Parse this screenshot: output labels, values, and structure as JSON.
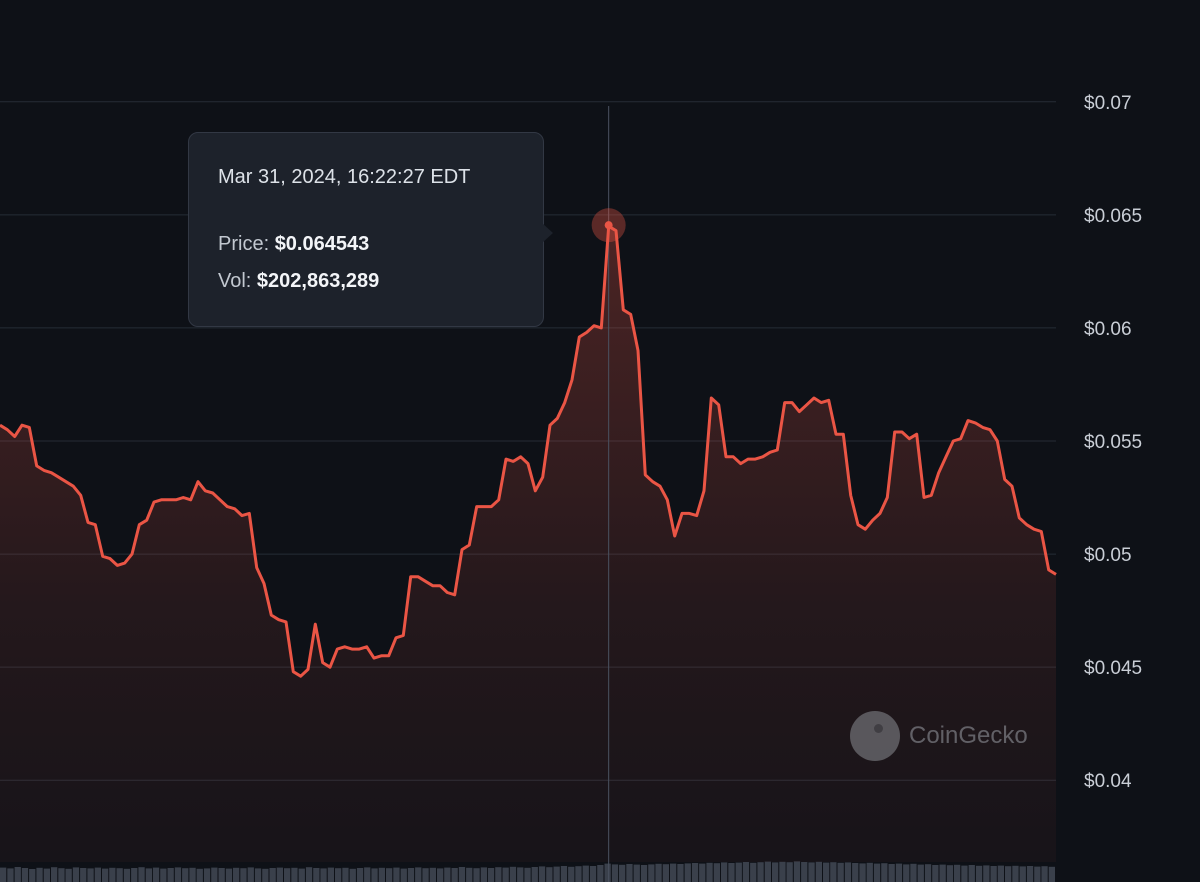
{
  "colors": {
    "background": "#0e1117",
    "line": "#ea5545",
    "gridline": "#262c36",
    "crosshair": "#4a5260",
    "volume": "#3a404b"
  },
  "tooltip": {
    "date": "Mar 31, 2024, 16:22:27 EDT",
    "price_label": "Price:",
    "price_value": "$0.064543",
    "vol_label": "Vol:",
    "vol_value": "$202,863,289"
  },
  "watermark": {
    "text": "CoinGecko",
    "icon": "gecko-logo-icon"
  },
  "chart_data": {
    "type": "area",
    "ylim": [
      0.0355,
      0.0745
    ],
    "y_ticks": [
      "$0.07",
      "$0.065",
      "$0.06",
      "$0.055",
      "$0.05",
      "$0.045",
      "$0.04"
    ],
    "y_tick_values": [
      0.07,
      0.065,
      0.06,
      0.055,
      0.05,
      0.045,
      0.04
    ],
    "grid": true,
    "hovered_index": 83,
    "hovered_value": 0.064543,
    "y": [
      0.0557,
      0.0555,
      0.0552,
      0.0557,
      0.0556,
      0.0539,
      0.0537,
      0.0536,
      0.0534,
      0.0532,
      0.053,
      0.0526,
      0.0514,
      0.0513,
      0.0499,
      0.0498,
      0.0495,
      0.0496,
      0.05,
      0.0513,
      0.0515,
      0.0523,
      0.0524,
      0.0524,
      0.0524,
      0.0525,
      0.0524,
      0.0532,
      0.0528,
      0.0527,
      0.0524,
      0.0521,
      0.052,
      0.0517,
      0.0518,
      0.0494,
      0.0487,
      0.0473,
      0.0471,
      0.047,
      0.0448,
      0.0446,
      0.0449,
      0.0469,
      0.0452,
      0.045,
      0.0458,
      0.0459,
      0.0458,
      0.0458,
      0.0459,
      0.0454,
      0.0455,
      0.0455,
      0.0463,
      0.0464,
      0.049,
      0.049,
      0.0488,
      0.0486,
      0.0486,
      0.0483,
      0.0482,
      0.0502,
      0.0504,
      0.0521,
      0.0521,
      0.0521,
      0.0524,
      0.0542,
      0.0541,
      0.0543,
      0.054,
      0.0528,
      0.0534,
      0.0557,
      0.056,
      0.0567,
      0.0577,
      0.0596,
      0.0598,
      0.0601,
      0.06,
      0.0645,
      0.0643,
      0.0608,
      0.0606,
      0.059,
      0.0535,
      0.0532,
      0.053,
      0.0524,
      0.0508,
      0.0518,
      0.0518,
      0.0517,
      0.0528,
      0.0569,
      0.0566,
      0.0543,
      0.0543,
      0.054,
      0.0542,
      0.0542,
      0.0543,
      0.0545,
      0.0546,
      0.0567,
      0.0567,
      0.0563,
      0.0566,
      0.0569,
      0.0567,
      0.0568,
      0.0553,
      0.0553,
      0.0526,
      0.0513,
      0.0511,
      0.0515,
      0.0518,
      0.0525,
      0.0554,
      0.0554,
      0.0551,
      0.0553,
      0.0525,
      0.0526,
      0.0536,
      0.0543,
      0.055,
      0.0551,
      0.0559,
      0.0558,
      0.0556,
      0.0555,
      0.055,
      0.0533,
      0.053,
      0.0516,
      0.0513,
      0.0511,
      0.051,
      0.0493,
      0.0491
    ],
    "volume": [
      0.42,
      0.38,
      0.45,
      0.4,
      0.35,
      0.41,
      0.37,
      0.44,
      0.39,
      0.36,
      0.43,
      0.4,
      0.38,
      0.42,
      0.37,
      0.41,
      0.39,
      0.36,
      0.4,
      0.44,
      0.38,
      0.42,
      0.37,
      0.4,
      0.43,
      0.39,
      0.41,
      0.36,
      0.38,
      0.42,
      0.4,
      0.37,
      0.41,
      0.39,
      0.43,
      0.38,
      0.36,
      0.4,
      0.42,
      0.39,
      0.41,
      0.37,
      0.44,
      0.4,
      0.38,
      0.42,
      0.39,
      0.41,
      0.36,
      0.4,
      0.43,
      0.38,
      0.41,
      0.39,
      0.42,
      0.37,
      0.4,
      0.43,
      0.39,
      0.41,
      0.38,
      0.42,
      0.4,
      0.45,
      0.41,
      0.39,
      0.43,
      0.4,
      0.44,
      0.42,
      0.46,
      0.43,
      0.41,
      0.45,
      0.48,
      0.44,
      0.47,
      0.5,
      0.46,
      0.49,
      0.52,
      0.5,
      0.55,
      0.62,
      0.58,
      0.56,
      0.6,
      0.57,
      0.55,
      0.58,
      0.61,
      0.59,
      0.62,
      0.6,
      0.63,
      0.65,
      0.62,
      0.66,
      0.64,
      0.68,
      0.65,
      0.67,
      0.7,
      0.66,
      0.69,
      0.72,
      0.68,
      0.71,
      0.69,
      0.73,
      0.7,
      0.68,
      0.71,
      0.67,
      0.69,
      0.66,
      0.68,
      0.65,
      0.63,
      0.66,
      0.62,
      0.64,
      0.6,
      0.62,
      0.58,
      0.61,
      0.57,
      0.59,
      0.55,
      0.57,
      0.54,
      0.56,
      0.52,
      0.55,
      0.51,
      0.53,
      0.5,
      0.52,
      0.49,
      0.51,
      0.48,
      0.5,
      0.47,
      0.49,
      0.46
    ]
  }
}
